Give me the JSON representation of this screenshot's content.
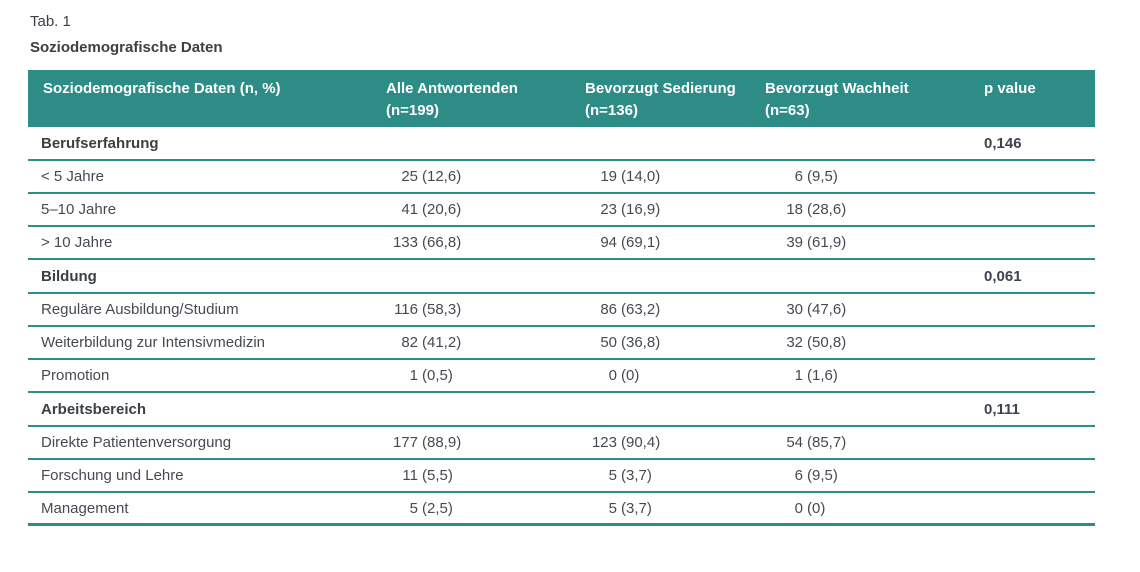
{
  "page": {
    "tab_label": "Tab. 1",
    "title": "Soziodemografische Daten"
  },
  "colors": {
    "header_background": "#2e8c86",
    "rule": "#2e8c86",
    "header_text": "#ffffff",
    "body_text": "#454a52",
    "caption_text": "#3b4046"
  },
  "table": {
    "header": [
      {
        "label": "Soziodemografische Daten (n, %)",
        "sub": ""
      },
      {
        "label": "Alle Antwortenden",
        "sub": "(n=199)"
      },
      {
        "label": "Bevorzugt Sedierung",
        "sub": "(n=136)"
      },
      {
        "label": "Bevorzugt Wachheit",
        "sub": "(n=63)"
      },
      {
        "label": "p value",
        "sub": ""
      }
    ],
    "sections": [
      {
        "name": "Berufserfahrung",
        "p_value": "0,146",
        "rows": [
          {
            "label": "< 5 Jahre",
            "all": {
              "n": "25",
              "pct": "(12,6)"
            },
            "sedierung": {
              "n": "19",
              "pct": "(14,0)"
            },
            "wachheit": {
              "n": "6",
              "pct": "(9,5)"
            }
          },
          {
            "label": "5–10 Jahre",
            "all": {
              "n": "41",
              "pct": "(20,6)"
            },
            "sedierung": {
              "n": "23",
              "pct": "(16,9)"
            },
            "wachheit": {
              "n": "18",
              "pct": "(28,6)"
            }
          },
          {
            "label": "> 10 Jahre",
            "all": {
              "n": "133",
              "pct": "(66,8)"
            },
            "sedierung": {
              "n": "94",
              "pct": "(69,1)"
            },
            "wachheit": {
              "n": "39",
              "pct": "(61,9)"
            }
          }
        ]
      },
      {
        "name": "Bildung",
        "p_value": "0,061",
        "rows": [
          {
            "label": "Reguläre Ausbildung/Studium",
            "all": {
              "n": "116",
              "pct": "(58,3)"
            },
            "sedierung": {
              "n": "86",
              "pct": "(63,2)"
            },
            "wachheit": {
              "n": "30",
              "pct": "(47,6)"
            }
          },
          {
            "label": "Weiterbildung zur Intensivmedizin",
            "all": {
              "n": "82",
              "pct": "(41,2)"
            },
            "sedierung": {
              "n": "50",
              "pct": "(36,8)"
            },
            "wachheit": {
              "n": "32",
              "pct": "(50,8)"
            }
          },
          {
            "label": "Promotion",
            "all": {
              "n": "1",
              "pct": "(0,5)"
            },
            "sedierung": {
              "n": "0",
              "pct": "(0)"
            },
            "wachheit": {
              "n": "1",
              "pct": "(1,6)"
            }
          }
        ]
      },
      {
        "name": "Arbeitsbereich",
        "p_value": "0,111",
        "rows": [
          {
            "label": "Direkte Patientenversorgung",
            "all": {
              "n": "177",
              "pct": "(88,9)"
            },
            "sedierung": {
              "n": "123",
              "pct": "(90,4)"
            },
            "wachheit": {
              "n": "54",
              "pct": "(85,7)"
            }
          },
          {
            "label": "Forschung und Lehre",
            "all": {
              "n": "11",
              "pct": "(5,5)"
            },
            "sedierung": {
              "n": "5",
              "pct": "(3,7)"
            },
            "wachheit": {
              "n": "6",
              "pct": "(9,5)"
            }
          },
          {
            "label": "Management",
            "all": {
              "n": "5",
              "pct": "(2,5)"
            },
            "sedierung": {
              "n": "5",
              "pct": "(3,7)"
            },
            "wachheit": {
              "n": "0",
              "pct": "(0)"
            }
          }
        ]
      }
    ]
  }
}
